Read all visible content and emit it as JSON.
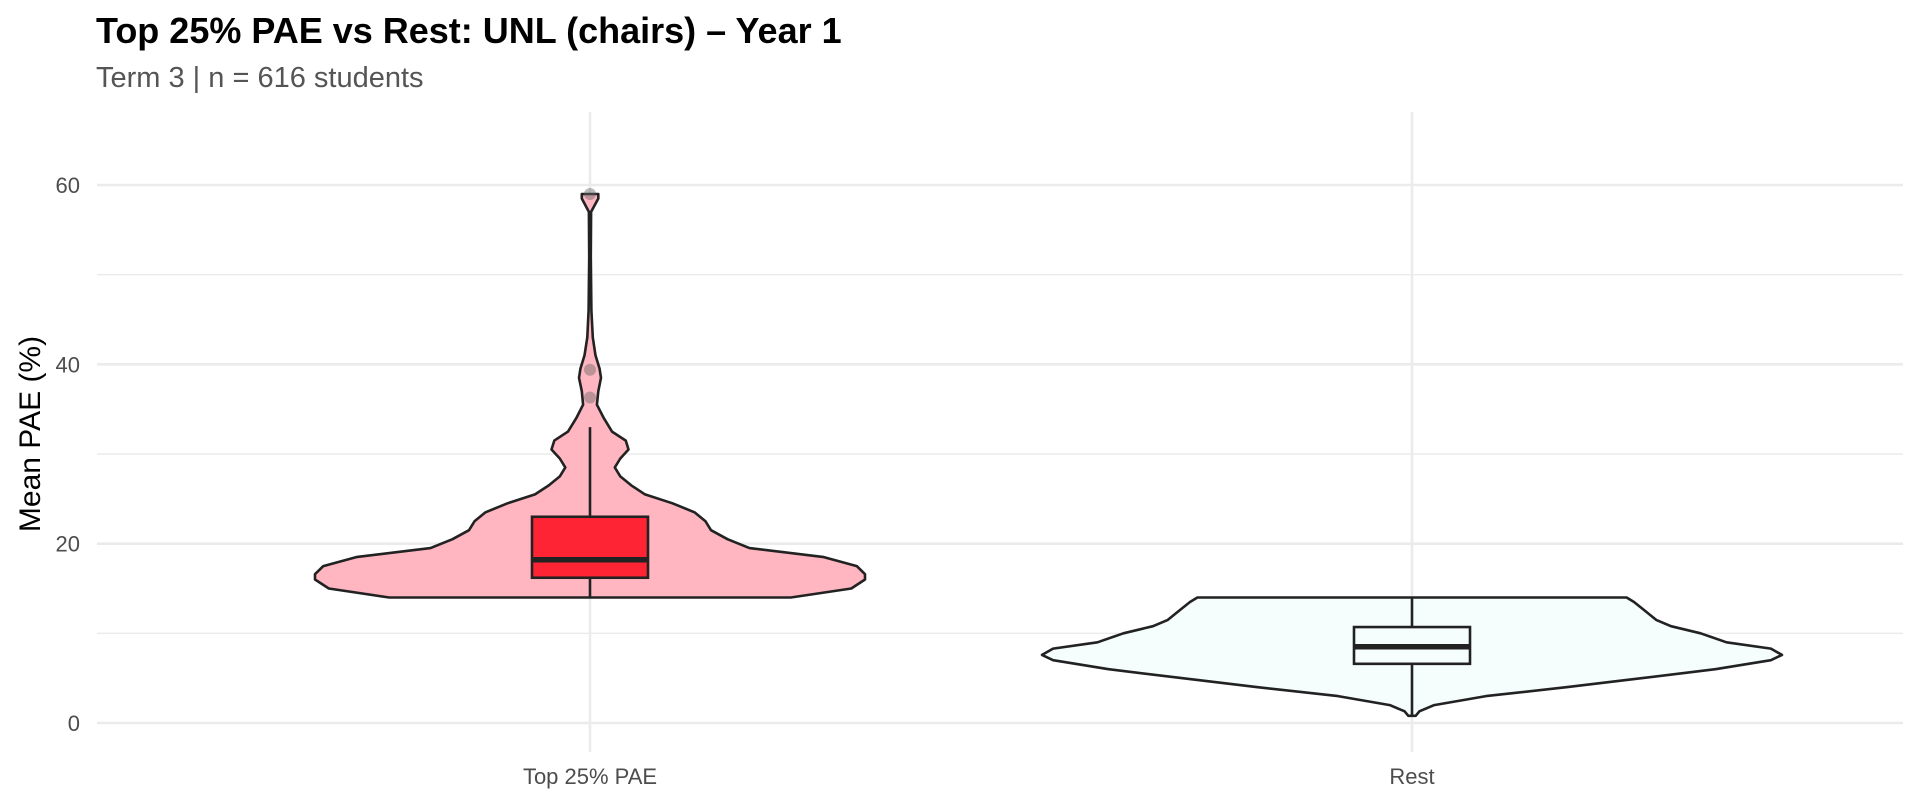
{
  "title": "Top 25% PAE vs Rest: UNL (chairs) – Year 1",
  "subtitle": "Term 3 | n = 616 students",
  "chart_data": {
    "type": "violin",
    "title": "Top 25% PAE vs Rest: UNL (chairs) – Year 1",
    "subtitle": "Term 3 | n = 616 students",
    "xlabel": "",
    "ylabel": "Mean PAE (%)",
    "ylim": [
      -2,
      68
    ],
    "yticks": [
      0,
      20,
      40,
      60
    ],
    "grid": true,
    "categories": [
      "Top 25% PAE",
      "Rest"
    ],
    "groups": [
      {
        "name": "Top 25% PAE",
        "violin_color": "#ffb6c1",
        "box_color": "#ff2433",
        "box": {
          "min": 14,
          "q1": 16.2,
          "median": 18.2,
          "q3": 23,
          "whisker_high": 33
        },
        "outliers": [
          59,
          39.4,
          36.3
        ],
        "density": [
          [
            14,
            0.73
          ],
          [
            15,
            0.95
          ],
          [
            16,
            1.0
          ],
          [
            16.6,
            1.0
          ],
          [
            17.5,
            0.97
          ],
          [
            18.5,
            0.85
          ],
          [
            19.5,
            0.58
          ],
          [
            20.5,
            0.5
          ],
          [
            21.5,
            0.44
          ],
          [
            22.5,
            0.42
          ],
          [
            23.5,
            0.38
          ],
          [
            24.5,
            0.3
          ],
          [
            25.5,
            0.2
          ],
          [
            26.5,
            0.15
          ],
          [
            27.5,
            0.11
          ],
          [
            28.5,
            0.09
          ],
          [
            29.5,
            0.11
          ],
          [
            30.5,
            0.14
          ],
          [
            31.5,
            0.13
          ],
          [
            32.5,
            0.08
          ],
          [
            34,
            0.05
          ],
          [
            35.5,
            0.025
          ],
          [
            37,
            0.03
          ],
          [
            38.5,
            0.04
          ],
          [
            39.5,
            0.035
          ],
          [
            41,
            0.02
          ],
          [
            43,
            0.01
          ],
          [
            46,
            0.005
          ],
          [
            52,
            0.003
          ],
          [
            57,
            0.004
          ],
          [
            58.5,
            0.03
          ],
          [
            59,
            0.03
          ]
        ]
      },
      {
        "name": "Rest",
        "violin_color": "#f5fdfd",
        "box_color": "#f5fdfd",
        "box": {
          "min": 0.8,
          "q1": 6.6,
          "median": 8.5,
          "q3": 10.7,
          "whisker_high": 14
        },
        "outliers": [],
        "density": [
          [
            0.8,
            0.01
          ],
          [
            1.3,
            0.02
          ],
          [
            2,
            0.06
          ],
          [
            3,
            0.2
          ],
          [
            4,
            0.42
          ],
          [
            5,
            0.62
          ],
          [
            6,
            0.82
          ],
          [
            7,
            0.97
          ],
          [
            7.6,
            1.0
          ],
          [
            8.3,
            0.97
          ],
          [
            9,
            0.85
          ],
          [
            10,
            0.78
          ],
          [
            10.8,
            0.7
          ],
          [
            11.5,
            0.66
          ],
          [
            12.5,
            0.63
          ],
          [
            13.5,
            0.6
          ],
          [
            14,
            0.58
          ]
        ]
      }
    ]
  }
}
